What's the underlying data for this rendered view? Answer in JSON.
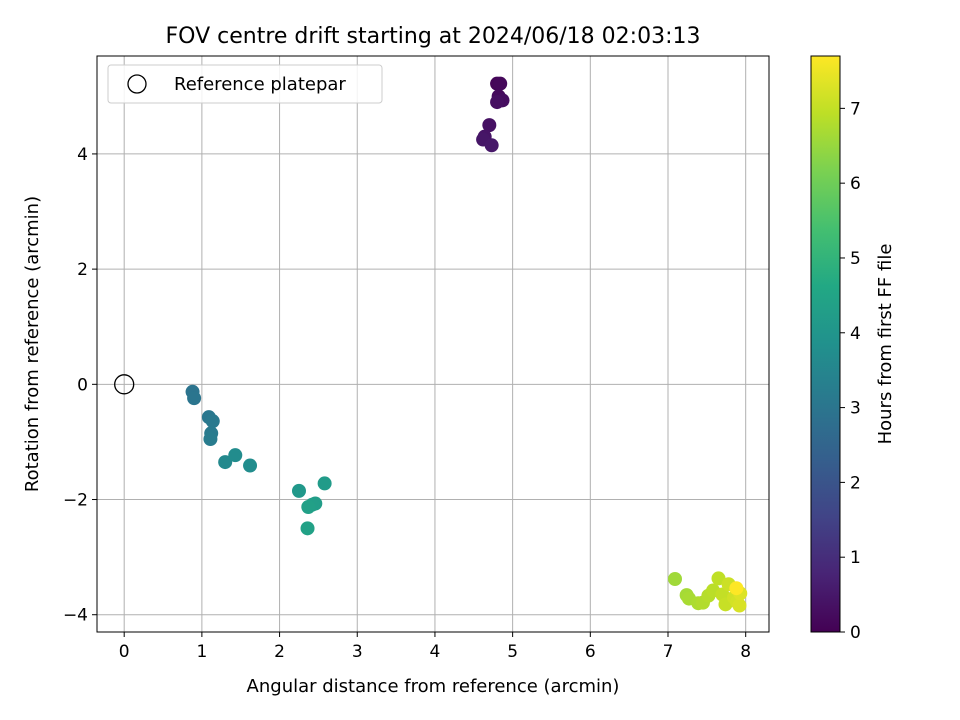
{
  "chart_data": {
    "type": "scatter",
    "title": "FOV centre drift starting at 2024/06/18 02:03:13",
    "xlabel": "Angular distance from reference (arcmin)",
    "ylabel": "Rotation from reference (arcmin)",
    "xlim": [
      -0.35,
      8.3
    ],
    "ylim": [
      -4.3,
      5.7
    ],
    "xticks": [
      0,
      1,
      2,
      3,
      4,
      5,
      6,
      7,
      8
    ],
    "yticks": [
      -4,
      -2,
      0,
      2,
      4
    ],
    "grid": true,
    "legend": {
      "position": "top-left",
      "entries": [
        "Reference platepar"
      ]
    },
    "reference_point": {
      "x": 0,
      "y": 0
    },
    "colorbar": {
      "label": "Hours from first FF file",
      "min": 0,
      "max": 7.7,
      "ticks": [
        0,
        1,
        2,
        3,
        4,
        5,
        6,
        7
      ],
      "colormap": "viridis"
    },
    "points": [
      {
        "x": 4.8,
        "y": 5.22,
        "h": 0.1
      },
      {
        "x": 4.84,
        "y": 5.22,
        "h": 0.15
      },
      {
        "x": 4.82,
        "y": 5.0,
        "h": 0.2
      },
      {
        "x": 4.87,
        "y": 4.93,
        "h": 0.25
      },
      {
        "x": 4.8,
        "y": 4.9,
        "h": 0.3
      },
      {
        "x": 4.7,
        "y": 4.5,
        "h": 0.35
      },
      {
        "x": 4.64,
        "y": 4.3,
        "h": 0.4
      },
      {
        "x": 4.62,
        "y": 4.25,
        "h": 0.45
      },
      {
        "x": 4.73,
        "y": 4.15,
        "h": 0.5
      },
      {
        "x": 0.88,
        "y": -0.13,
        "h": 2.95
      },
      {
        "x": 0.9,
        "y": -0.24,
        "h": 3.0
      },
      {
        "x": 1.09,
        "y": -0.57,
        "h": 3.05
      },
      {
        "x": 1.14,
        "y": -0.64,
        "h": 3.1
      },
      {
        "x": 1.12,
        "y": -0.85,
        "h": 3.15
      },
      {
        "x": 1.11,
        "y": -0.95,
        "h": 3.2
      },
      {
        "x": 1.3,
        "y": -1.35,
        "h": 3.6
      },
      {
        "x": 1.43,
        "y": -1.23,
        "h": 3.7
      },
      {
        "x": 1.62,
        "y": -1.41,
        "h": 3.75
      },
      {
        "x": 2.25,
        "y": -1.85,
        "h": 4.1
      },
      {
        "x": 2.58,
        "y": -1.72,
        "h": 4.2
      },
      {
        "x": 2.46,
        "y": -2.07,
        "h": 4.25
      },
      {
        "x": 2.42,
        "y": -2.09,
        "h": 4.3
      },
      {
        "x": 2.37,
        "y": -2.13,
        "h": 4.35
      },
      {
        "x": 2.36,
        "y": -2.5,
        "h": 4.4
      },
      {
        "x": 7.09,
        "y": -3.38,
        "h": 6.6
      },
      {
        "x": 7.24,
        "y": -3.66,
        "h": 6.65
      },
      {
        "x": 7.27,
        "y": -3.72,
        "h": 6.7
      },
      {
        "x": 7.39,
        "y": -3.8,
        "h": 6.75
      },
      {
        "x": 7.45,
        "y": -3.79,
        "h": 6.8
      },
      {
        "x": 7.52,
        "y": -3.67,
        "h": 6.85
      },
      {
        "x": 7.58,
        "y": -3.58,
        "h": 6.9
      },
      {
        "x": 7.65,
        "y": -3.37,
        "h": 6.95
      },
      {
        "x": 7.7,
        "y": -3.65,
        "h": 7.0
      },
      {
        "x": 7.74,
        "y": -3.82,
        "h": 7.05
      },
      {
        "x": 7.78,
        "y": -3.47,
        "h": 7.1
      },
      {
        "x": 7.85,
        "y": -3.7,
        "h": 7.15
      },
      {
        "x": 7.89,
        "y": -3.78,
        "h": 7.2
      },
      {
        "x": 7.92,
        "y": -3.84,
        "h": 7.25
      },
      {
        "x": 7.93,
        "y": -3.63,
        "h": 7.3
      },
      {
        "x": 7.88,
        "y": -3.54,
        "h": 7.7
      }
    ]
  }
}
